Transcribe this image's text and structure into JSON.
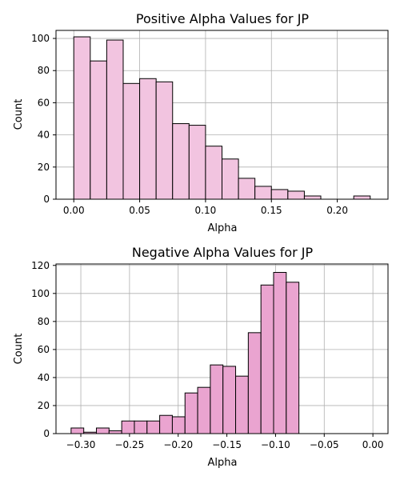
{
  "chart_data": [
    {
      "type": "bar",
      "title": "Positive Alpha Values for JP",
      "xlabel": "Alpha",
      "ylabel": "Count",
      "color": "#f2c4e0",
      "xlim": [
        -0.0135,
        0.2385
      ],
      "ylim": [
        0,
        105
      ],
      "xticks": [
        0.0,
        0.05,
        0.1,
        0.15,
        0.2
      ],
      "xtick_labels": [
        "0.00",
        "0.05",
        "0.10",
        "0.15",
        "0.20"
      ],
      "yticks": [
        0,
        20,
        40,
        60,
        80,
        100
      ],
      "ytick_labels": [
        "0",
        "20",
        "40",
        "60",
        "80",
        "100"
      ],
      "bins": [
        {
          "x0": 0.0,
          "x1": 0.0125,
          "count": 101
        },
        {
          "x0": 0.0125,
          "x1": 0.025,
          "count": 86
        },
        {
          "x0": 0.025,
          "x1": 0.0375,
          "count": 99
        },
        {
          "x0": 0.0375,
          "x1": 0.05,
          "count": 72
        },
        {
          "x0": 0.05,
          "x1": 0.0625,
          "count": 75
        },
        {
          "x0": 0.0625,
          "x1": 0.075,
          "count": 73
        },
        {
          "x0": 0.075,
          "x1": 0.0875,
          "count": 47
        },
        {
          "x0": 0.0875,
          "x1": 0.1,
          "count": 46
        },
        {
          "x0": 0.1,
          "x1": 0.1125,
          "count": 33
        },
        {
          "x0": 0.1125,
          "x1": 0.125,
          "count": 25
        },
        {
          "x0": 0.125,
          "x1": 0.1375,
          "count": 13
        },
        {
          "x0": 0.1375,
          "x1": 0.15,
          "count": 8
        },
        {
          "x0": 0.15,
          "x1": 0.1625,
          "count": 6
        },
        {
          "x0": 0.1625,
          "x1": 0.175,
          "count": 5
        },
        {
          "x0": 0.175,
          "x1": 0.1875,
          "count": 2
        },
        {
          "x0": 0.1875,
          "x1": 0.2,
          "count": 0
        },
        {
          "x0": 0.2,
          "x1": 0.2125,
          "count": 0
        },
        {
          "x0": 0.2125,
          "x1": 0.225,
          "count": 2
        }
      ],
      "grid": true
    },
    {
      "type": "bar",
      "title": "Negative Alpha Values for JP",
      "xlabel": "Alpha",
      "ylabel": "Count",
      "color": "#eaa4d0",
      "xlim": [
        -0.3255,
        0.0155
      ],
      "ylim": [
        0,
        121
      ],
      "xticks": [
        -0.3,
        -0.25,
        -0.2,
        -0.15,
        -0.1,
        -0.05,
        0.0
      ],
      "xtick_labels": [
        "−0.30",
        "−0.25",
        "−0.20",
        "−0.15",
        "−0.10",
        "−0.05",
        "0.00"
      ],
      "yticks": [
        0,
        20,
        40,
        60,
        80,
        100,
        120
      ],
      "ytick_labels": [
        "0",
        "20",
        "40",
        "60",
        "80",
        "100",
        "120"
      ],
      "bins": [
        {
          "x0": -0.31,
          "x1": -0.297,
          "count": 4
        },
        {
          "x0": -0.297,
          "x1": -0.284,
          "count": 1
        },
        {
          "x0": -0.284,
          "x1": -0.271,
          "count": 4
        },
        {
          "x0": -0.271,
          "x1": -0.258,
          "count": 2
        },
        {
          "x0": -0.258,
          "x1": -0.245,
          "count": 9
        },
        {
          "x0": -0.245,
          "x1": -0.232,
          "count": 9
        },
        {
          "x0": -0.232,
          "x1": -0.219,
          "count": 9
        },
        {
          "x0": -0.219,
          "x1": -0.206,
          "count": 13
        },
        {
          "x0": -0.206,
          "x1": -0.193,
          "count": 12
        },
        {
          "x0": -0.193,
          "x1": -0.18,
          "count": 29
        },
        {
          "x0": -0.18,
          "x1": -0.167,
          "count": 33
        },
        {
          "x0": -0.167,
          "x1": -0.154,
          "count": 49
        },
        {
          "x0": -0.154,
          "x1": -0.141,
          "count": 48
        },
        {
          "x0": -0.141,
          "x1": -0.128,
          "count": 41
        },
        {
          "x0": -0.128,
          "x1": -0.115,
          "count": 72
        },
        {
          "x0": -0.115,
          "x1": -0.102,
          "count": 106
        },
        {
          "x0": -0.102,
          "x1": -0.089,
          "count": 115
        },
        {
          "x0": -0.089,
          "x1": -0.076,
          "count": 108
        }
      ],
      "grid": true
    }
  ]
}
